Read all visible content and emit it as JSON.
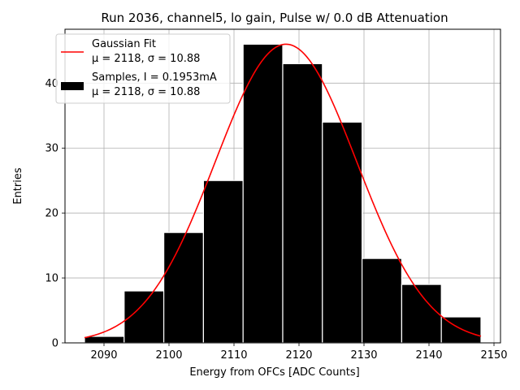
{
  "chart_data": {
    "type": "bar",
    "title": "Run 2036, channel5, lo gain, Pulse w/ 0.0 dB Attenuation",
    "xlabel": "Energy from OFCs [ADC Counts]",
    "ylabel": "Entries",
    "xlim": [
      2084,
      2151
    ],
    "ylim": [
      0,
      48.3
    ],
    "xticks": [
      2090,
      2100,
      2110,
      2120,
      2130,
      2140,
      2150
    ],
    "yticks": [
      0,
      10,
      20,
      30,
      40
    ],
    "grid": true,
    "legend_position": "upper-left",
    "histogram": {
      "name": "Samples, I = 0.1953mA",
      "stats": "μ = 2118, σ = 10.88",
      "color": "#000000",
      "edge_color": "#ffffff",
      "bins": [
        {
          "x0": 2087.0,
          "x1": 2093.1,
          "count": 1
        },
        {
          "x0": 2093.1,
          "x1": 2099.2,
          "count": 8
        },
        {
          "x0": 2099.2,
          "x1": 2105.3,
          "count": 17
        },
        {
          "x0": 2105.3,
          "x1": 2111.4,
          "count": 25
        },
        {
          "x0": 2111.4,
          "x1": 2117.5,
          "count": 46
        },
        {
          "x0": 2117.5,
          "x1": 2123.6,
          "count": 43
        },
        {
          "x0": 2123.6,
          "x1": 2129.7,
          "count": 34
        },
        {
          "x0": 2129.7,
          "x1": 2135.8,
          "count": 13
        },
        {
          "x0": 2135.8,
          "x1": 2141.9,
          "count": 9
        },
        {
          "x0": 2141.9,
          "x1": 2148.0,
          "count": 4
        }
      ]
    },
    "fit": {
      "name": "Gaussian Fit",
      "stats": "μ = 2118, σ = 10.88",
      "color": "#ff0000",
      "mu": 2118,
      "sigma": 10.88,
      "amplitude": 46,
      "x_range": [
        2087,
        2148
      ]
    }
  }
}
